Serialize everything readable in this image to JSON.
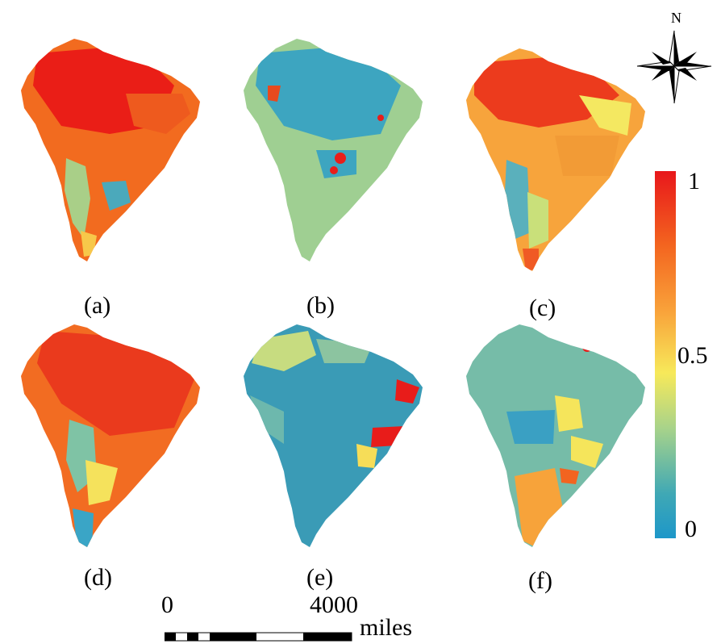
{
  "panels": [
    {
      "id": "a",
      "label": "(a)"
    },
    {
      "id": "b",
      "label": "(b)"
    },
    {
      "id": "c",
      "label": "(c)"
    },
    {
      "id": "d",
      "label": "(d)"
    },
    {
      "id": "e",
      "label": "(e)"
    },
    {
      "id": "f",
      "label": "(f)"
    }
  ],
  "north_arrow": {
    "label": "N"
  },
  "colorbar": {
    "max_label": "1",
    "mid_label": "0.5",
    "min_label": "0",
    "colors": {
      "high": "#e8171b",
      "mid": "#f7e95a",
      "low": "#1d97c9"
    }
  },
  "scale_bar": {
    "zero_label": "0",
    "max_label": "4000",
    "unit": "miles"
  }
}
